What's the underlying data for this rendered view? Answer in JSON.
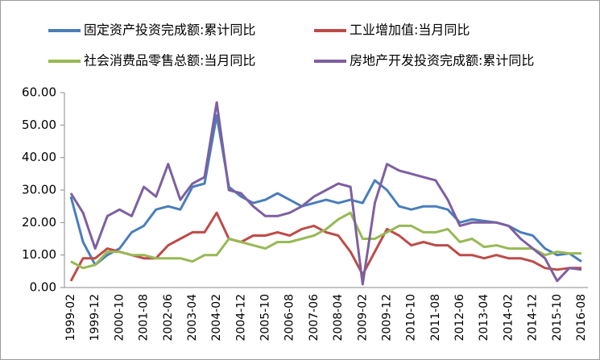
{
  "chart_data": {
    "type": "line",
    "categories": [
      "1999-02",
      null,
      "1999-12",
      null,
      "2000-10",
      null,
      "2001-08",
      null,
      "2002-06",
      null,
      "2003-04",
      null,
      "2004-02",
      null,
      "2004-12",
      null,
      "2005-10",
      null,
      "2006-08",
      null,
      "2007-06",
      null,
      "2008-04",
      null,
      "2009-02",
      null,
      "2009-12",
      null,
      "2010-10",
      null,
      "2011-08",
      null,
      "2012-06",
      null,
      "2013-04",
      null,
      "2014-02",
      null,
      "2014-12",
      null,
      "2015-10",
      null,
      "2016-08"
    ],
    "series": [
      {
        "name": "固定资产投资完成额:累计同比",
        "color": "#4a7ebb",
        "values": [
          28,
          14,
          7,
          10,
          12,
          17,
          19,
          24,
          25,
          24,
          31,
          32,
          53,
          31,
          28,
          26,
          27,
          29,
          27,
          25,
          26,
          27,
          26,
          27,
          26,
          33,
          30,
          25,
          24,
          25,
          25,
          24,
          20,
          21,
          20.5,
          20,
          19,
          17,
          16,
          12,
          10,
          10.5,
          8
        ]
      },
      {
        "name": "工业增加值:当月同比",
        "color": "#be4b48",
        "values": [
          2,
          9,
          9,
          12,
          11,
          10,
          9,
          9,
          13,
          15,
          17,
          17,
          23,
          15,
          14,
          16,
          16,
          17,
          16,
          18,
          19,
          17,
          16,
          11,
          4,
          11,
          18,
          16,
          13,
          14,
          13,
          13,
          10,
          10,
          9,
          10,
          9,
          9,
          8,
          6,
          5.5,
          6,
          6
        ]
      },
      {
        "name": "社会消费品零售总额:当月同比",
        "color": "#98b954",
        "values": [
          8,
          6,
          7,
          11,
          11,
          10,
          10,
          9,
          9,
          9,
          8,
          10,
          10,
          15,
          14,
          13,
          12,
          14,
          14,
          15,
          16,
          18,
          21,
          23,
          15,
          15,
          17,
          19,
          19,
          17,
          17,
          18,
          14,
          15,
          12.5,
          13,
          12,
          12,
          12,
          10,
          11,
          10.5,
          10.5
        ]
      },
      {
        "name": "房地产开发投资完成额:累计同比",
        "color": "#7d60a0",
        "values": [
          29,
          23,
          12,
          22,
          24,
          22,
          31,
          28,
          38,
          27,
          32,
          34,
          57,
          30,
          29,
          25,
          22,
          22,
          23,
          25,
          28,
          30,
          32,
          31,
          1,
          26,
          38,
          36,
          35,
          34,
          33,
          27,
          19,
          20,
          20,
          20,
          19,
          15,
          12,
          9,
          2,
          6,
          5.5
        ]
      }
    ],
    "ylim": [
      0,
      60
    ],
    "yticks": [
      {
        "value": 0,
        "label": "0.00"
      },
      {
        "value": 10,
        "label": "10.00"
      },
      {
        "value": 20,
        "label": "20.00"
      },
      {
        "value": 30,
        "label": "30.00"
      },
      {
        "value": 40,
        "label": "40.00"
      },
      {
        "value": 50,
        "label": "50.00"
      },
      {
        "value": 60,
        "label": "60.00"
      }
    ],
    "grid": false
  }
}
